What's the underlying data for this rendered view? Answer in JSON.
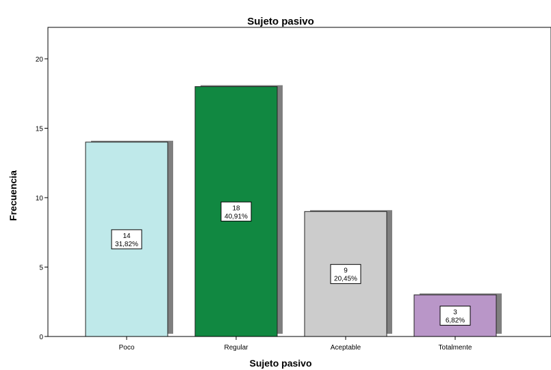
{
  "chart_data": {
    "type": "bar",
    "title": "Sujeto pasivo",
    "xlabel": "Sujeto pasivo",
    "ylabel": "Frecuencia",
    "ylim": [
      0,
      22
    ],
    "yticks": [
      0,
      5,
      10,
      15,
      20
    ],
    "categories": [
      "Poco",
      "Regular",
      "Aceptable",
      "Totalmente"
    ],
    "values": [
      14,
      18,
      9,
      3
    ],
    "percent_labels": [
      "31,82%",
      "40,91%",
      "20,45%",
      "6,82%"
    ],
    "bar_colors": [
      "#bfe9ea",
      "#118841",
      "#cccccc",
      "#b996c8"
    ],
    "shadow_color": "#7f7f7f",
    "grid": false,
    "legend": "none"
  }
}
